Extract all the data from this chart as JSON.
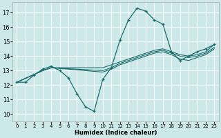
{
  "title": "",
  "xlabel": "Humidex (Indice chaleur)",
  "bg_color": "#cde8e8",
  "grid_color": "#ffffff",
  "line_color": "#1a6b6b",
  "xlim": [
    -0.5,
    23.5
  ],
  "ylim": [
    9.5,
    17.7
  ],
  "xticks": [
    0,
    1,
    2,
    3,
    4,
    5,
    6,
    7,
    8,
    9,
    10,
    11,
    12,
    13,
    14,
    15,
    16,
    17,
    18,
    19,
    20,
    21,
    22,
    23
  ],
  "yticks": [
    10,
    11,
    12,
    13,
    14,
    15,
    16,
    17
  ],
  "main_curve": {
    "x": [
      0,
      1,
      2,
      3,
      4,
      5,
      6,
      7,
      8,
      9,
      10,
      11,
      12,
      13,
      14,
      15,
      16,
      17,
      18,
      19,
      20,
      21,
      22,
      23
    ],
    "y": [
      12.2,
      12.2,
      12.7,
      13.1,
      13.3,
      13.0,
      12.5,
      11.4,
      10.5,
      10.2,
      12.4,
      13.2,
      15.1,
      16.5,
      17.3,
      17.1,
      16.5,
      16.2,
      14.3,
      13.7,
      14.0,
      14.3,
      14.5,
      14.8
    ]
  },
  "flat_lines": [
    {
      "x": [
        0,
        3,
        4,
        10,
        11,
        12,
        13,
        14,
        15,
        16,
        17,
        18,
        19,
        20,
        21,
        22,
        23
      ],
      "y": [
        12.2,
        13.0,
        13.2,
        13.2,
        13.4,
        13.6,
        13.8,
        14.0,
        14.2,
        14.4,
        14.5,
        14.3,
        14.1,
        14.0,
        14.1,
        14.3,
        14.8
      ]
    },
    {
      "x": [
        0,
        3,
        4,
        10,
        11,
        12,
        13,
        14,
        15,
        16,
        17,
        18,
        19,
        20,
        21,
        22,
        23
      ],
      "y": [
        12.2,
        13.0,
        13.2,
        13.0,
        13.2,
        13.5,
        13.7,
        13.9,
        14.1,
        14.3,
        14.4,
        14.2,
        14.0,
        13.9,
        14.0,
        14.2,
        14.6
      ]
    },
    {
      "x": [
        0,
        3,
        4,
        10,
        11,
        12,
        13,
        14,
        15,
        16,
        17,
        18,
        19,
        20,
        21,
        22,
        23
      ],
      "y": [
        12.2,
        13.0,
        13.2,
        12.9,
        13.1,
        13.4,
        13.6,
        13.8,
        14.0,
        14.2,
        14.3,
        14.1,
        13.8,
        13.7,
        13.9,
        14.1,
        14.5
      ]
    }
  ]
}
